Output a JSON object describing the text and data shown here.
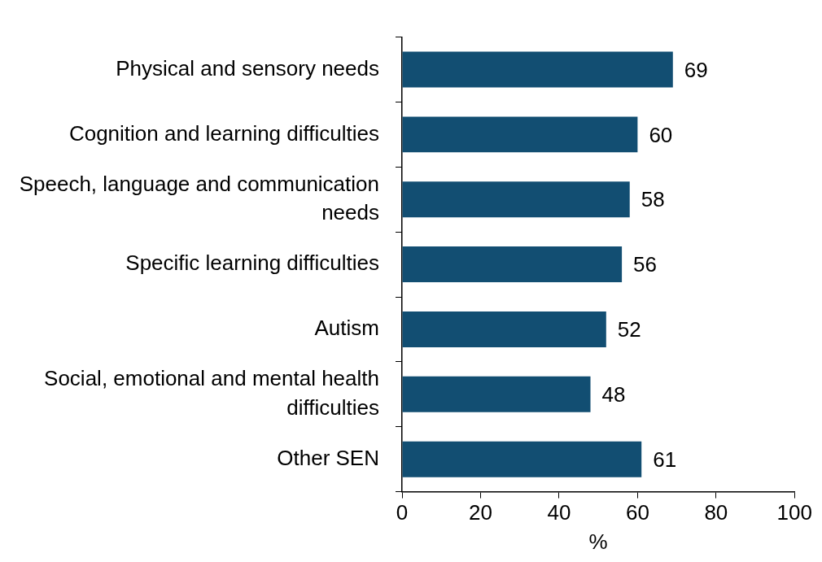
{
  "chart_data": {
    "type": "bar",
    "orientation": "horizontal",
    "xlabel": "%",
    "categories": [
      "Physical and sensory needs",
      "Cognition and learning difficulties",
      "Speech, language and communication needs",
      "Specific learning difficulties",
      "Autism",
      "Social, emotional and mental health difficulties",
      "Other SEN"
    ],
    "values": [
      69,
      60,
      58,
      56,
      52,
      48,
      61
    ],
    "color": "#124e72",
    "xlim": [
      0,
      100
    ],
    "xticks": [
      0,
      20,
      40,
      60,
      80,
      100
    ],
    "grid": false,
    "legend": false,
    "data_labels": true
  }
}
